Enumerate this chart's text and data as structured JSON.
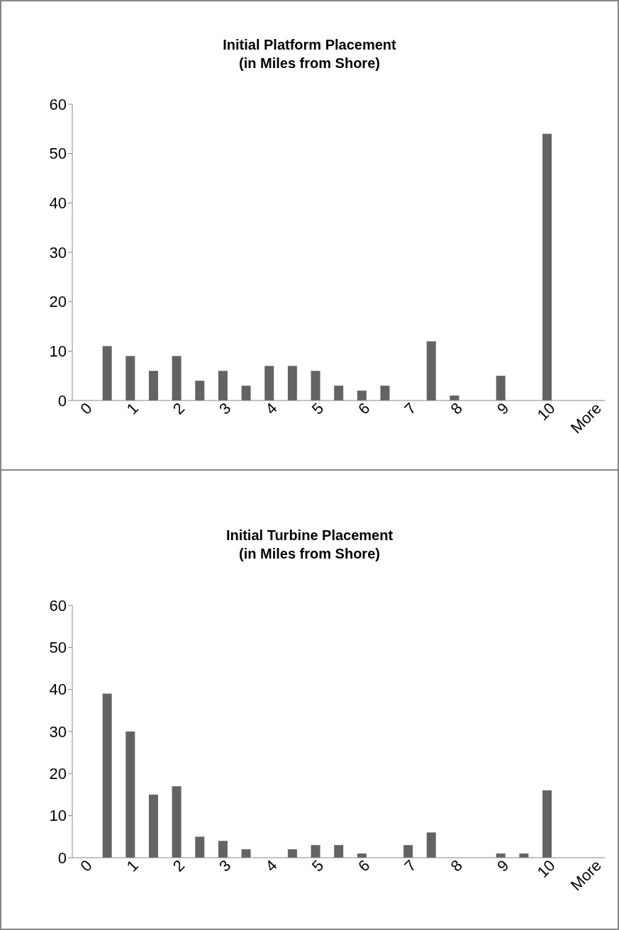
{
  "chart_data": [
    {
      "type": "bar",
      "title": "Initial Platform Placement\n(in Miles from Shore)",
      "categories": [
        "0",
        null,
        "1",
        null,
        "2",
        null,
        "3",
        null,
        "4",
        null,
        "5",
        null,
        "6",
        null,
        "7",
        null,
        "8",
        null,
        "9",
        null,
        "10",
        null,
        "More"
      ],
      "values": [
        0,
        11,
        9,
        6,
        9,
        4,
        6,
        3,
        7,
        7,
        6,
        3,
        2,
        3,
        0,
        12,
        1,
        0,
        5,
        0,
        54,
        0,
        0
      ],
      "color": "#636363",
      "ylim": [
        0,
        60
      ],
      "yticks": [
        0,
        10,
        20,
        30,
        40,
        50,
        60
      ]
    },
    {
      "type": "bar",
      "title": "Initial Turbine Placement\n(in Miles from Shore)",
      "categories": [
        "0",
        null,
        "1",
        null,
        "2",
        null,
        "3",
        null,
        "4",
        null,
        "5",
        null,
        "6",
        null,
        "7",
        null,
        "8",
        null,
        "9",
        null,
        "10",
        null,
        "More"
      ],
      "values": [
        0,
        39,
        30,
        15,
        17,
        5,
        4,
        2,
        0,
        2,
        3,
        3,
        1,
        0,
        3,
        6,
        0,
        0,
        1,
        1,
        16,
        0,
        0
      ],
      "color": "#636363",
      "ylim": [
        0,
        60
      ],
      "yticks": [
        0,
        10,
        20,
        30,
        40,
        50,
        60
      ]
    }
  ]
}
